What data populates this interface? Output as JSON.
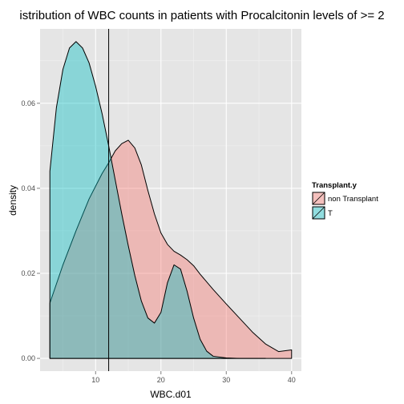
{
  "chart_data": {
    "type": "area",
    "subtype": "density",
    "title": "istribution of WBC counts in patients with Procalcitonin levels of >= 2",
    "xlabel": "WBC.d01",
    "ylabel": "density",
    "xlim": [
      1.5,
      41.5
    ],
    "ylim": [
      -0.003,
      0.0775
    ],
    "x_ticks": [
      10,
      20,
      30,
      40
    ],
    "x_tick_labels": [
      "10",
      "20",
      "30",
      "40"
    ],
    "y_ticks": [
      0.0,
      0.02,
      0.04,
      0.06
    ],
    "y_tick_labels": [
      "0.00",
      "0.02",
      "0.04",
      "0.06"
    ],
    "grid": true,
    "background": "#e5e5e5",
    "vline_x": 12,
    "legend": {
      "title": "Transplant.y",
      "placement": "right",
      "entries": [
        {
          "label": "non Transplant",
          "color": "#f8766d"
        },
        {
          "label": "T",
          "color": "#00bfc4"
        }
      ]
    },
    "series": [
      {
        "name": "non Transplant",
        "fill": "#f8766d",
        "x": [
          3,
          5,
          7,
          9,
          10,
          11,
          12,
          13,
          14,
          15,
          16,
          17,
          18,
          19,
          20,
          21,
          22,
          23,
          24,
          25,
          26,
          28,
          30,
          32,
          34,
          36,
          38,
          40
        ],
        "y": [
          0.013,
          0.022,
          0.03,
          0.0375,
          0.0405,
          0.0435,
          0.046,
          0.0488,
          0.0505,
          0.0513,
          0.0495,
          0.0455,
          0.0395,
          0.034,
          0.0295,
          0.0268,
          0.0252,
          0.0243,
          0.0232,
          0.0218,
          0.0198,
          0.0162,
          0.0128,
          0.0095,
          0.0062,
          0.0034,
          0.0016,
          0.002
        ]
      },
      {
        "name": "T",
        "fill": "#00bfc4",
        "x": [
          3,
          4,
          5,
          6,
          7,
          8,
          9,
          10,
          11,
          12,
          13,
          14,
          15,
          16,
          17,
          18,
          19,
          20,
          21,
          22,
          23,
          24,
          25,
          26,
          27,
          28,
          30,
          32,
          34,
          36
        ],
        "y": [
          0.044,
          0.059,
          0.068,
          0.073,
          0.0745,
          0.073,
          0.0695,
          0.064,
          0.0575,
          0.05,
          0.042,
          0.034,
          0.0265,
          0.0195,
          0.0135,
          0.0095,
          0.0083,
          0.0108,
          0.0178,
          0.022,
          0.021,
          0.0158,
          0.0095,
          0.0045,
          0.0017,
          0.0005,
          0.0001,
          0.0,
          0.0,
          0.0
        ]
      }
    ]
  }
}
